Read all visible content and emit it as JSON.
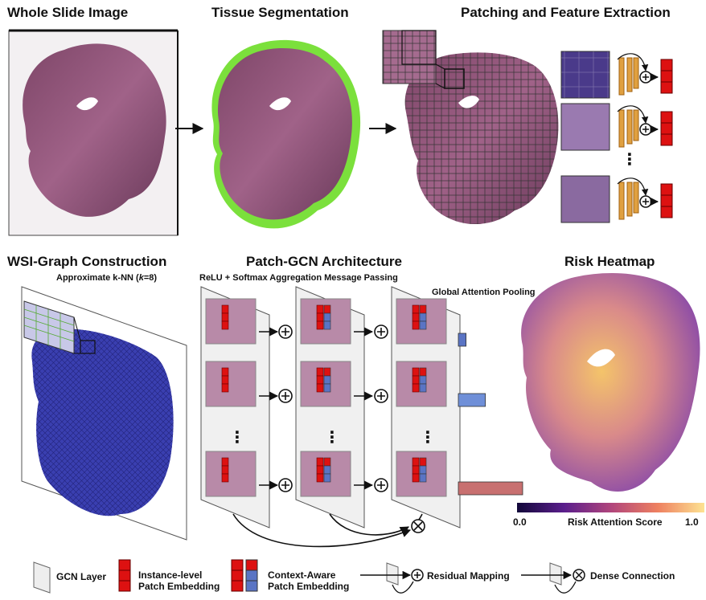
{
  "titles": {
    "wsi": "Whole Slide Image",
    "seg": "Tissue Segmentation",
    "patch": "Patching and Feature Extraction",
    "graph": "WSI-Graph Construction",
    "gcn": "Patch-GCN Architecture",
    "heat": "Risk Heatmap"
  },
  "subtitles": {
    "knn_prefix": "Approximate k-NN (",
    "knn_k": "k",
    "knn_suffix": "=8)",
    "message": "ReLU + Softmax Aggregation Message Passing",
    "pooling": "Global Attention Pooling"
  },
  "colorbar": {
    "min": "0.0",
    "max": "1.0",
    "label": "Risk Attention Score"
  },
  "legend": {
    "gcn_layer": "GCN Layer",
    "instance": "Instance-level\nPatch Embedding",
    "context": "Context-Aware\nPatch Embedding",
    "residual": "Residual Mapping",
    "dense": "Dense Connection"
  },
  "colors": {
    "tissue": "#8e5578",
    "tissue_dark": "#6a3a5a",
    "seg_outline": "#7be03c",
    "graph_blue": "#3a3fb0",
    "embed_red": "#dd1111",
    "embed_blue": "#5a74c4",
    "orange": "#e0a040",
    "bar_blue": "#6f8fd8",
    "bar_pink": "#c87070"
  },
  "attention_bars": [
    0.12,
    0.42,
    1.0
  ],
  "ellipsis": "⋮"
}
